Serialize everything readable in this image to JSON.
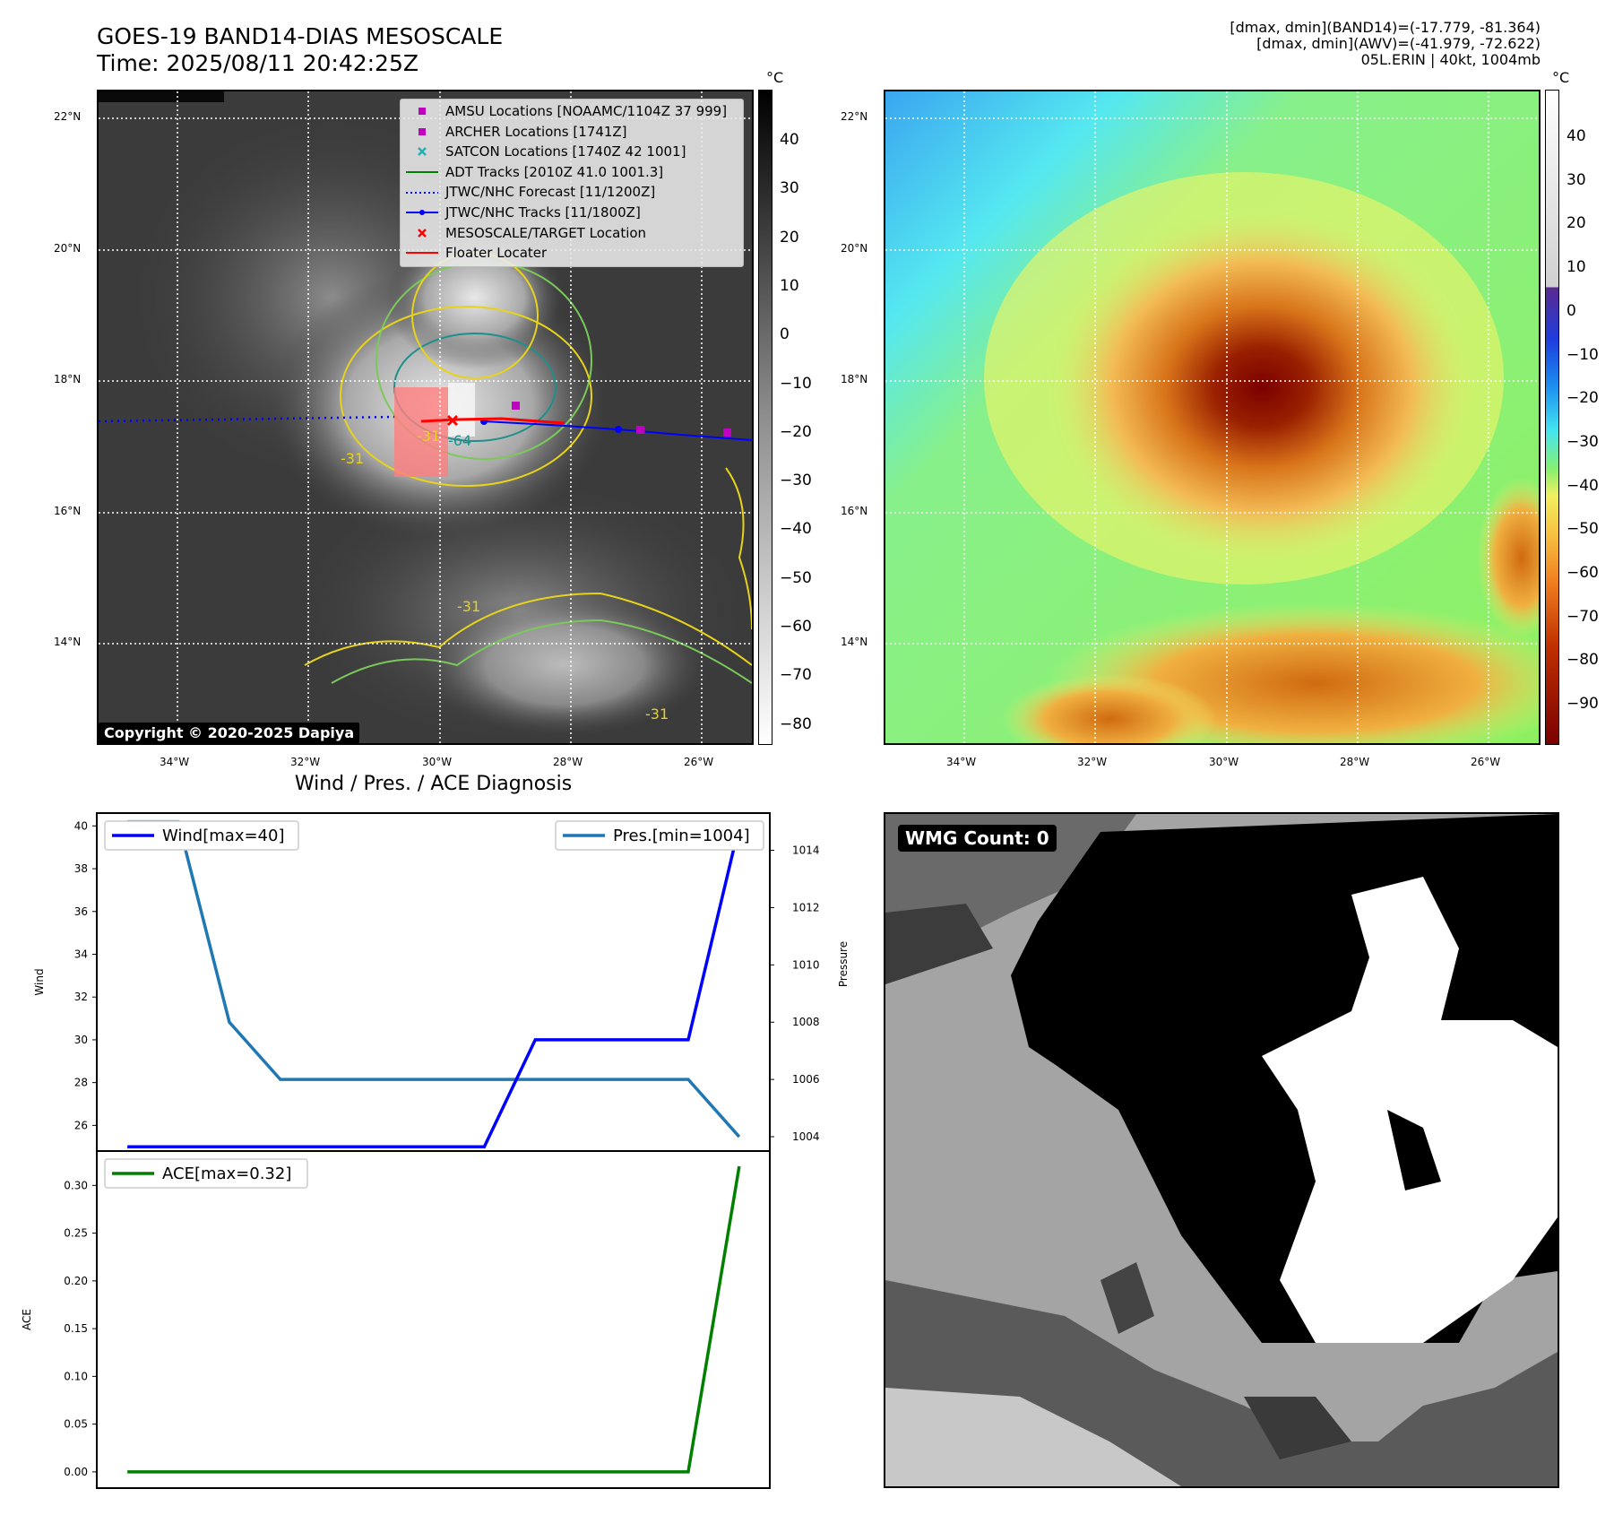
{
  "header": {
    "title": "GOES-19 BAND14-DIAS MESOSCALE",
    "time": "Time: 2025/08/11 20:42:25Z",
    "info_line1": "[dmax, dmin](BAND14)=(-17.779, -81.364)",
    "info_line2": "[dmax, dmin](AWV)=(-41.979, -72.622)",
    "info_line3": "05L.ERIN | 40kt, 1004mb"
  },
  "map": {
    "lat_labels": [
      "22°N",
      "20°N",
      "18°N",
      "16°N",
      "14°N"
    ],
    "lon_labels": [
      "34°W",
      "32°W",
      "30°W",
      "28°W",
      "26°W"
    ],
    "copyright": "Copyright © 2020-2025 Dapiya",
    "contour_labels": [
      "-31",
      "-64",
      "-31",
      "-31",
      "-31"
    ],
    "colorbar_unit": "°C",
    "colorbar1_ticks": [
      "40",
      "30",
      "20",
      "10",
      "0",
      "−10",
      "−20",
      "−30",
      "−40",
      "−50",
      "−60",
      "−70",
      "−80"
    ],
    "colorbar2_ticks": [
      "40",
      "30",
      "20",
      "10",
      "0",
      "−10",
      "−20",
      "−30",
      "−40",
      "−50",
      "−60",
      "−70",
      "−80",
      "−90"
    ],
    "legend": [
      {
        "label": "AMSU Locations [NOAAMC/1104Z 37 999]",
        "color": "#c000c0",
        "marker": "square"
      },
      {
        "label": "ARCHER Locations [1741Z]",
        "color": "#c000c0",
        "marker": "square"
      },
      {
        "label": "SATCON Locations [1740Z 42 1001]",
        "color": "#20b0b0",
        "marker": "x"
      },
      {
        "label": "ADT Tracks [2010Z 41.0 1001.3]",
        "color": "#008000",
        "marker": "line"
      },
      {
        "label": "JTWC/NHC Forecast [11/1200Z]",
        "color": "#0000ff",
        "marker": "dotted"
      },
      {
        "label": "JTWC/NHC Tracks [11/1800Z]",
        "color": "#0000ff",
        "marker": "line-dot"
      },
      {
        "label": "MESOSCALE/TARGET Location",
        "color": "#ff0000",
        "marker": "x"
      },
      {
        "label": "Floater Locater",
        "color": "#ff0000",
        "marker": "line"
      }
    ]
  },
  "wmg": {
    "label": "WMG Count: 0"
  },
  "chart_data": [
    {
      "type": "line",
      "title": "Wind / Pres. / ACE Diagnosis",
      "ylabel": "Wind",
      "y2label": "Pressure",
      "x": [
        0,
        1,
        2,
        3,
        4,
        5,
        6,
        7,
        8,
        9,
        10,
        11,
        12
      ],
      "series": [
        {
          "name": "Wind[max=40]",
          "axis": "left",
          "color": "#0000ff",
          "values": [
            25,
            25,
            25,
            25,
            25,
            25,
            25,
            25,
            30,
            30,
            30,
            30,
            40
          ]
        },
        {
          "name": "Pres.[min=1004]",
          "axis": "right",
          "color": "#1f77b4",
          "values": [
            1015,
            1015,
            1008,
            1006,
            1006,
            1006,
            1006,
            1006,
            1006,
            1006,
            1006,
            1006,
            1004
          ]
        }
      ],
      "ylim": [
        24.8,
        40.6
      ],
      "y2lim": [
        1003.5,
        1015.3
      ],
      "yticks": [
        "26",
        "28",
        "30",
        "32",
        "34",
        "36",
        "38",
        "40"
      ],
      "y2ticks": [
        "1004",
        "1006",
        "1008",
        "1010",
        "1012",
        "1014"
      ]
    },
    {
      "type": "line",
      "ylabel": "ACE",
      "x": [
        0,
        1,
        2,
        3,
        4,
        5,
        6,
        7,
        8,
        9,
        10,
        11,
        12
      ],
      "series": [
        {
          "name": "ACE[max=0.32]",
          "color": "#008000",
          "values": [
            0,
            0,
            0,
            0,
            0,
            0,
            0,
            0,
            0,
            0,
            0,
            0,
            0.32
          ]
        }
      ],
      "ylim": [
        -0.017,
        0.336
      ],
      "yticks": [
        "0.00",
        "0.05",
        "0.10",
        "0.15",
        "0.20",
        "0.25",
        "0.30"
      ]
    }
  ]
}
